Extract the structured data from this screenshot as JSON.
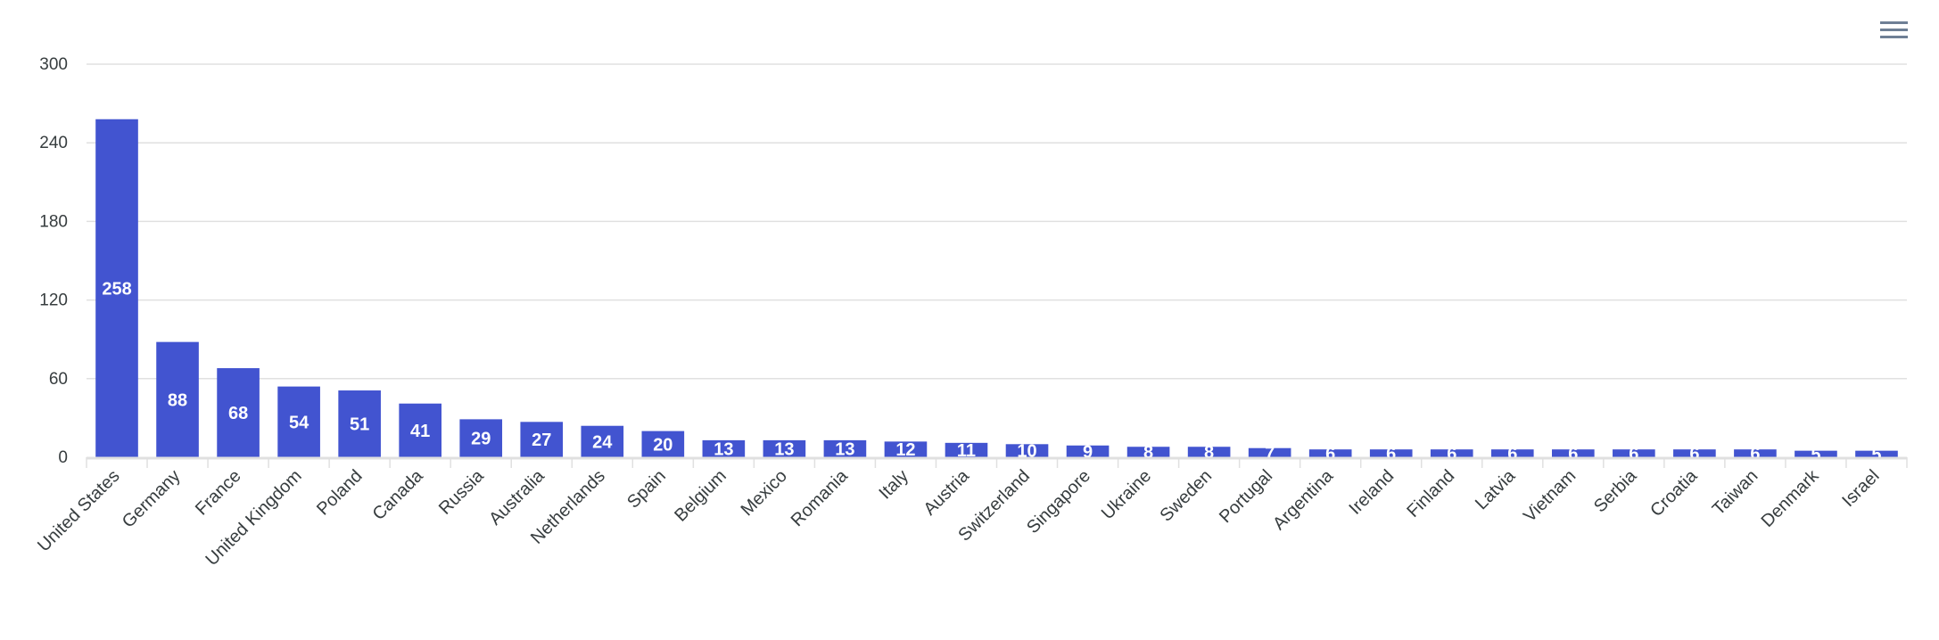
{
  "toolbar": {
    "menu_icon": "hamburger-menu-icon"
  },
  "colors": {
    "bar": "#4254d0",
    "grid": "#e0e0e0",
    "axis_text": "#373d3f",
    "bar_label": "#ffffff"
  },
  "chart_data": {
    "type": "bar",
    "title": "",
    "xlabel": "",
    "ylabel": "",
    "ylim": [
      0,
      300
    ],
    "yticks": [
      0,
      60,
      120,
      180,
      240,
      300
    ],
    "grid": true,
    "legend": "none",
    "categories": [
      "United States",
      "Germany",
      "France",
      "United Kingdom",
      "Poland",
      "Canada",
      "Russia",
      "Australia",
      "Netherlands",
      "Spain",
      "Belgium",
      "Mexico",
      "Romania",
      "Italy",
      "Austria",
      "Switzerland",
      "Singapore",
      "Ukraine",
      "Sweden",
      "Portugal",
      "Argentina",
      "Ireland",
      "Finland",
      "Latvia",
      "Vietnam",
      "Serbia",
      "Croatia",
      "Taiwan",
      "Denmark",
      "Israel"
    ],
    "values": [
      258,
      88,
      68,
      54,
      51,
      41,
      29,
      27,
      24,
      20,
      13,
      13,
      13,
      12,
      11,
      10,
      9,
      8,
      8,
      7,
      6,
      6,
      6,
      6,
      6,
      6,
      6,
      6,
      5,
      5
    ],
    "data_labels": true,
    "x_label_rotation": -45
  }
}
